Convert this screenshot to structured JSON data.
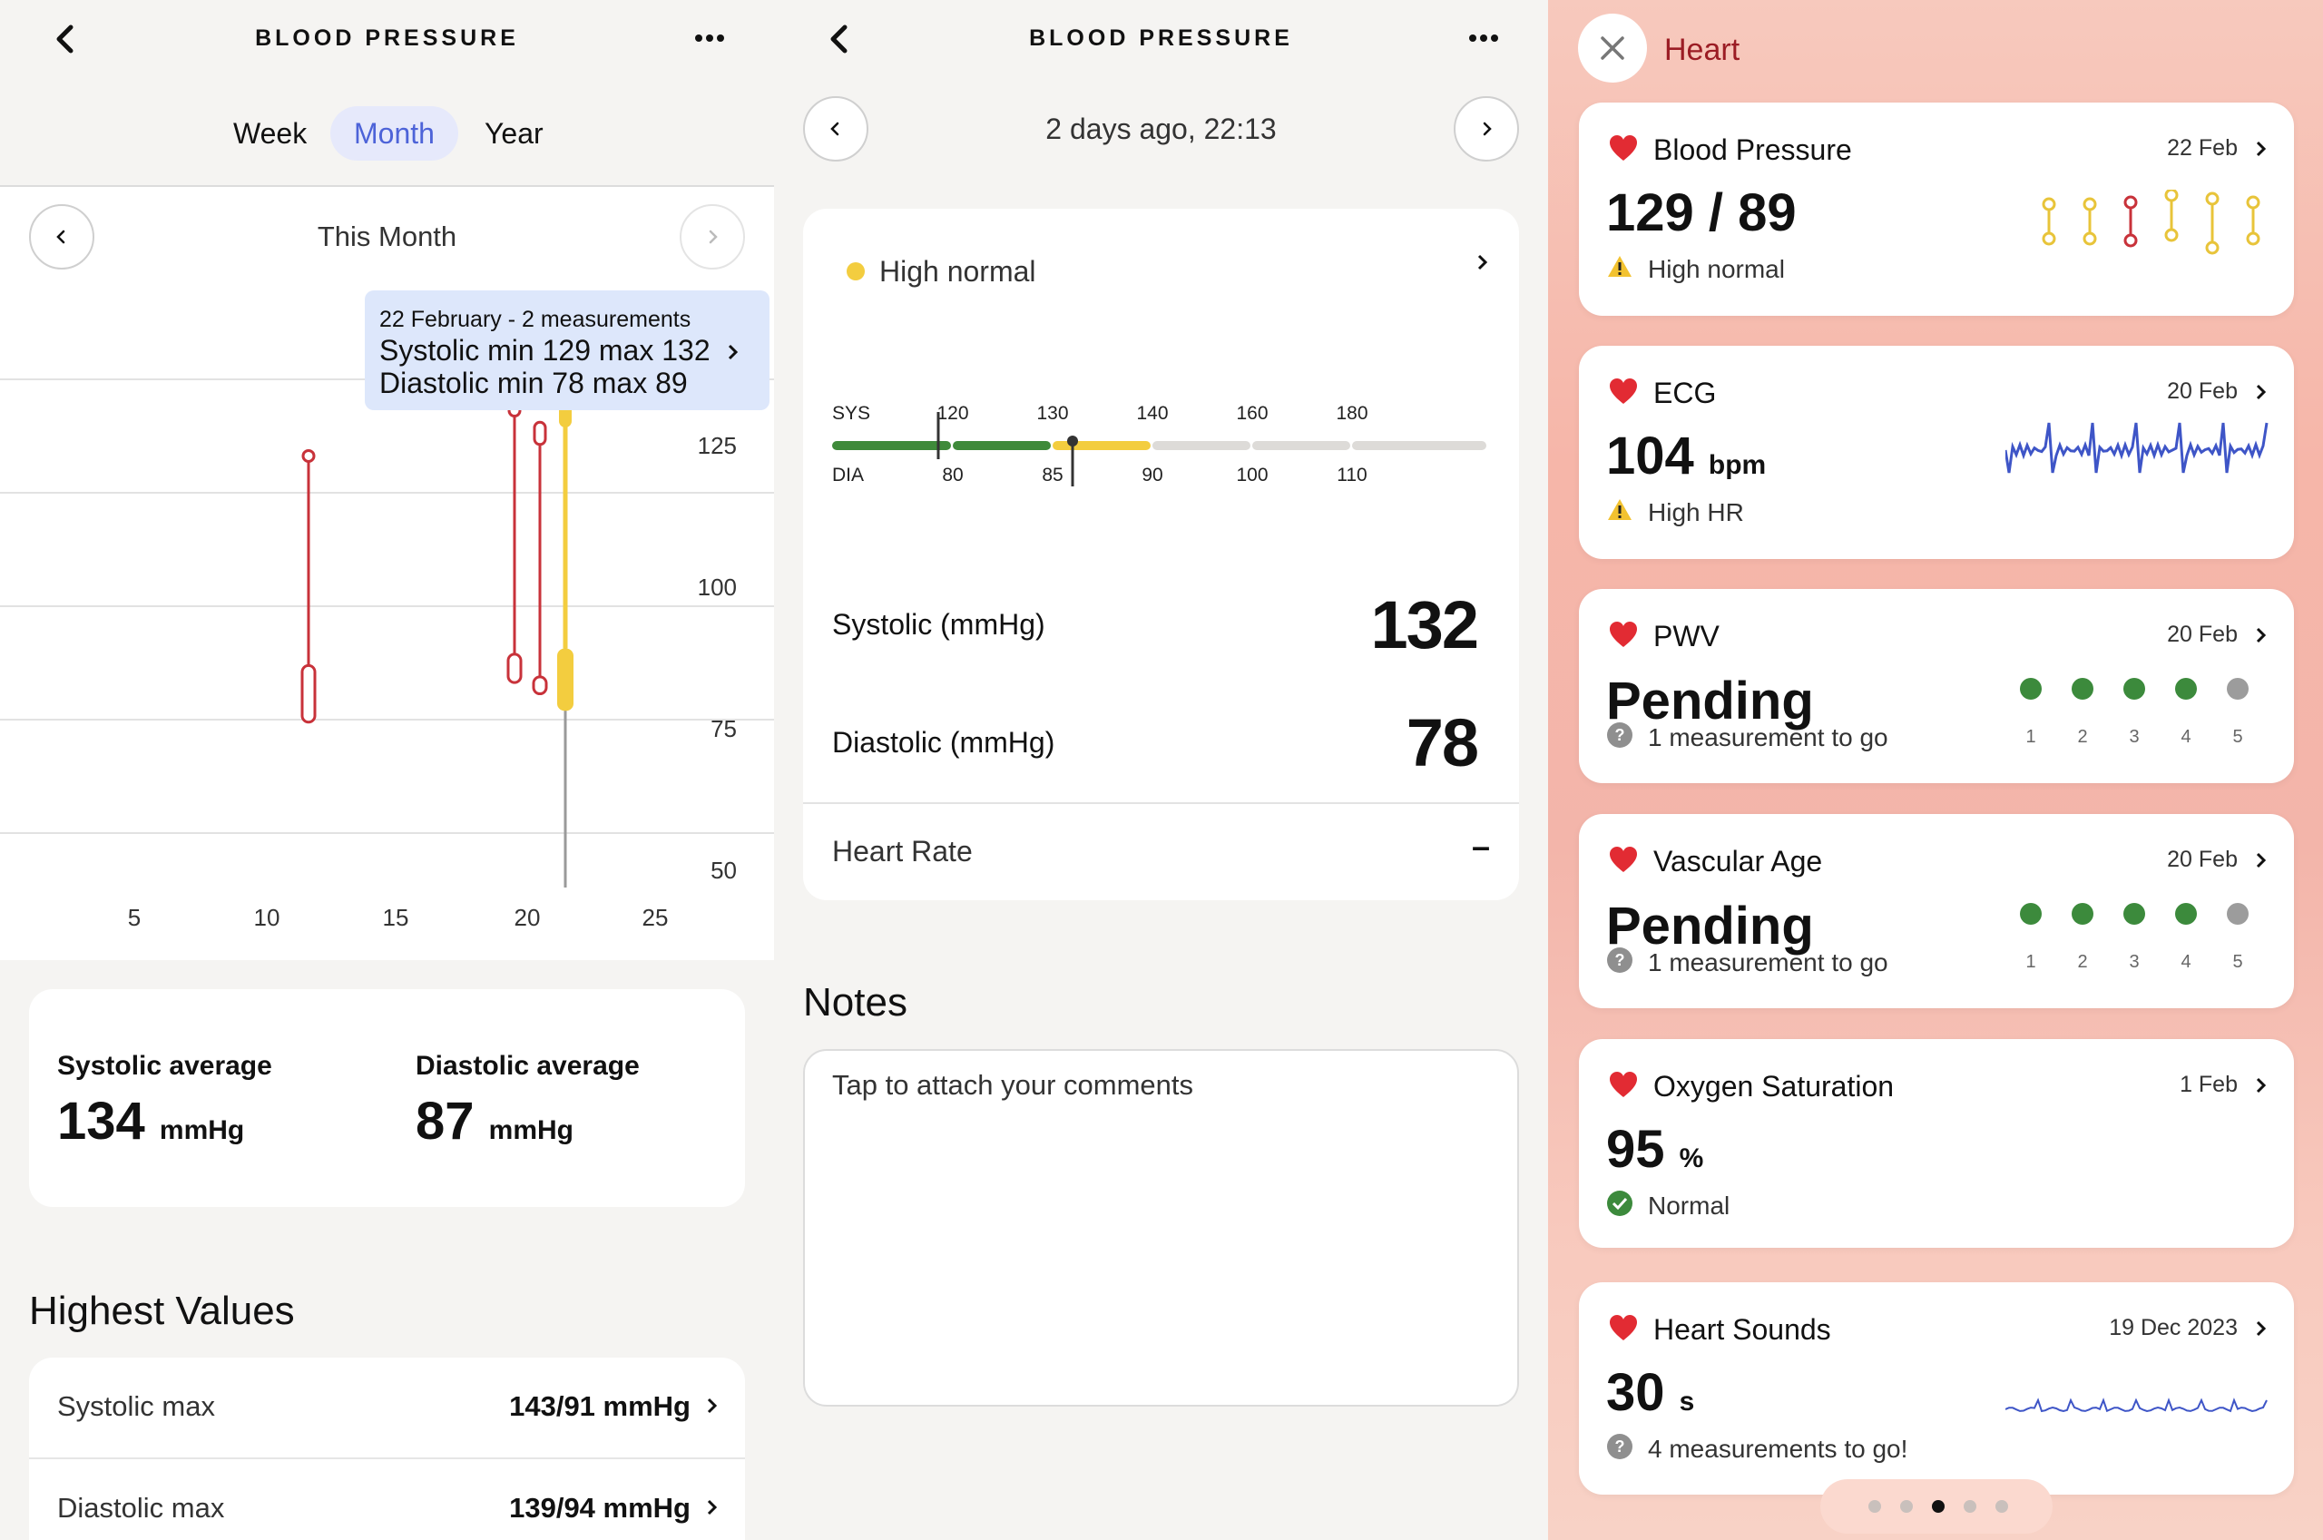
{
  "panel1": {
    "title": "BLOOD PRESSURE",
    "tabs": [
      "Week",
      "Month",
      "Year"
    ],
    "active_tab": "Month",
    "period": "This Month",
    "tooltip": {
      "line1": "22 February - 2 measurements",
      "line2": "Systolic min 129 max 132",
      "line3": "Diastolic min 78 max 89"
    },
    "chart_data": {
      "type": "range",
      "x_ticks": [
        "5",
        "10",
        "15",
        "20",
        "25"
      ],
      "y_ticks": [
        "125",
        "100",
        "75",
        "50"
      ],
      "ylim": [
        50,
        125
      ],
      "xlim": [
        1,
        28
      ],
      "series": [
        {
          "day": 12,
          "sys_max": 123,
          "sys_min": 123,
          "dia_max": 86,
          "dia_min": 76,
          "color": "#c8323a"
        },
        {
          "day": 20,
          "sys_max": 131,
          "sys_min": 131,
          "dia_max": 88,
          "dia_min": 83,
          "color": "#c8323a"
        },
        {
          "day": 21,
          "sys_max": 128,
          "sys_min": 126,
          "dia_max": 84,
          "dia_min": 81,
          "color": "#c8323a"
        },
        {
          "day": 22,
          "sys_max": 132,
          "sys_min": 129,
          "dia_max": 89,
          "dia_min": 78,
          "color": "#f3cd3f",
          "selected": true
        }
      ]
    },
    "averages": {
      "sys_label": "Systolic average",
      "sys_value": "134",
      "dia_label": "Diastolic average",
      "dia_value": "87",
      "unit": "mmHg"
    },
    "highest_title": "Highest Values",
    "highest": [
      {
        "label": "Systolic max",
        "value": "143/91 mmHg"
      },
      {
        "label": "Diastolic max",
        "value": "139/94 mmHg"
      }
    ]
  },
  "panel2": {
    "title": "BLOOD PRESSURE",
    "timestamp": "2 days ago, 22:13",
    "category": "High normal",
    "category_color": "#f3cd3f",
    "scale": {
      "sys_label": "SYS",
      "dia_label": "DIA",
      "sys_ticks": [
        "120",
        "130",
        "140",
        "160",
        "180"
      ],
      "dia_ticks": [
        "80",
        "85",
        "90",
        "100",
        "110"
      ]
    },
    "systolic_label": "Systolic (mmHg)",
    "systolic_value": "132",
    "diastolic_label": "Diastolic (mmHg)",
    "diastolic_value": "78",
    "heart_rate_label": "Heart Rate",
    "heart_rate_value": "–",
    "notes_title": "Notes",
    "notes_placeholder": "Tap to attach your comments"
  },
  "panel3": {
    "title": "Heart",
    "cards": [
      {
        "title": "Blood Pressure",
        "date": "22 Feb",
        "value": "129 / 89",
        "unit": "",
        "status": "High normal",
        "status_icon": "warning-icon"
      },
      {
        "title": "ECG",
        "date": "20 Feb",
        "value": "104",
        "unit": "bpm",
        "status": "High HR",
        "status_icon": "warning-icon"
      },
      {
        "title": "PWV",
        "date": "20 Feb",
        "value": "Pending",
        "unit": "",
        "status": "1 measurement to go",
        "status_icon": "question-icon",
        "steps": [
          "1",
          "2",
          "3",
          "4",
          "5"
        ],
        "done": 4
      },
      {
        "title": "Vascular Age",
        "date": "20 Feb",
        "value": "Pending",
        "unit": "",
        "status": "1 measurement to go",
        "status_icon": "question-icon",
        "steps": [
          "1",
          "2",
          "3",
          "4",
          "5"
        ],
        "done": 4
      },
      {
        "title": "Oxygen Saturation",
        "date": "1 Feb",
        "value": "95",
        "unit": "%",
        "status": "Normal",
        "status_icon": "check-icon"
      },
      {
        "title": "Heart Sounds",
        "date": "19 Dec 2023",
        "value": "30",
        "unit": "s",
        "status": "4 measurements to go!",
        "status_icon": "question-icon"
      }
    ],
    "page_dots": 5,
    "active_dot": 3
  }
}
